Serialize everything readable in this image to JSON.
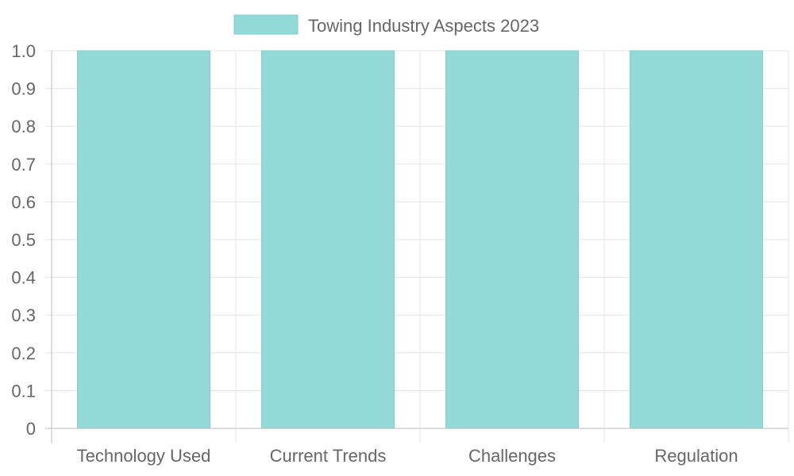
{
  "chart_data": {
    "type": "bar",
    "title": "",
    "xlabel": "",
    "ylabel": "",
    "categories": [
      "Technology Used",
      "Current Trends",
      "Challenges",
      "Regulation"
    ],
    "series": [
      {
        "name": "Towing Industry Aspects 2023",
        "values": [
          1,
          1,
          1,
          1
        ]
      }
    ],
    "ylim": [
      0,
      1
    ],
    "yticks": [
      "0",
      "0.1",
      "0.2",
      "0.3",
      "0.4",
      "0.5",
      "0.6",
      "0.7",
      "0.8",
      "0.9",
      "1.0"
    ],
    "grid": true,
    "legend": "top-center",
    "colors": {
      "bar_fill": "#93d9d7",
      "bar_stroke": "#7fcfcd",
      "grid": "#e5e5e5",
      "axis": "#bbbbbb",
      "text": "#666666"
    }
  }
}
